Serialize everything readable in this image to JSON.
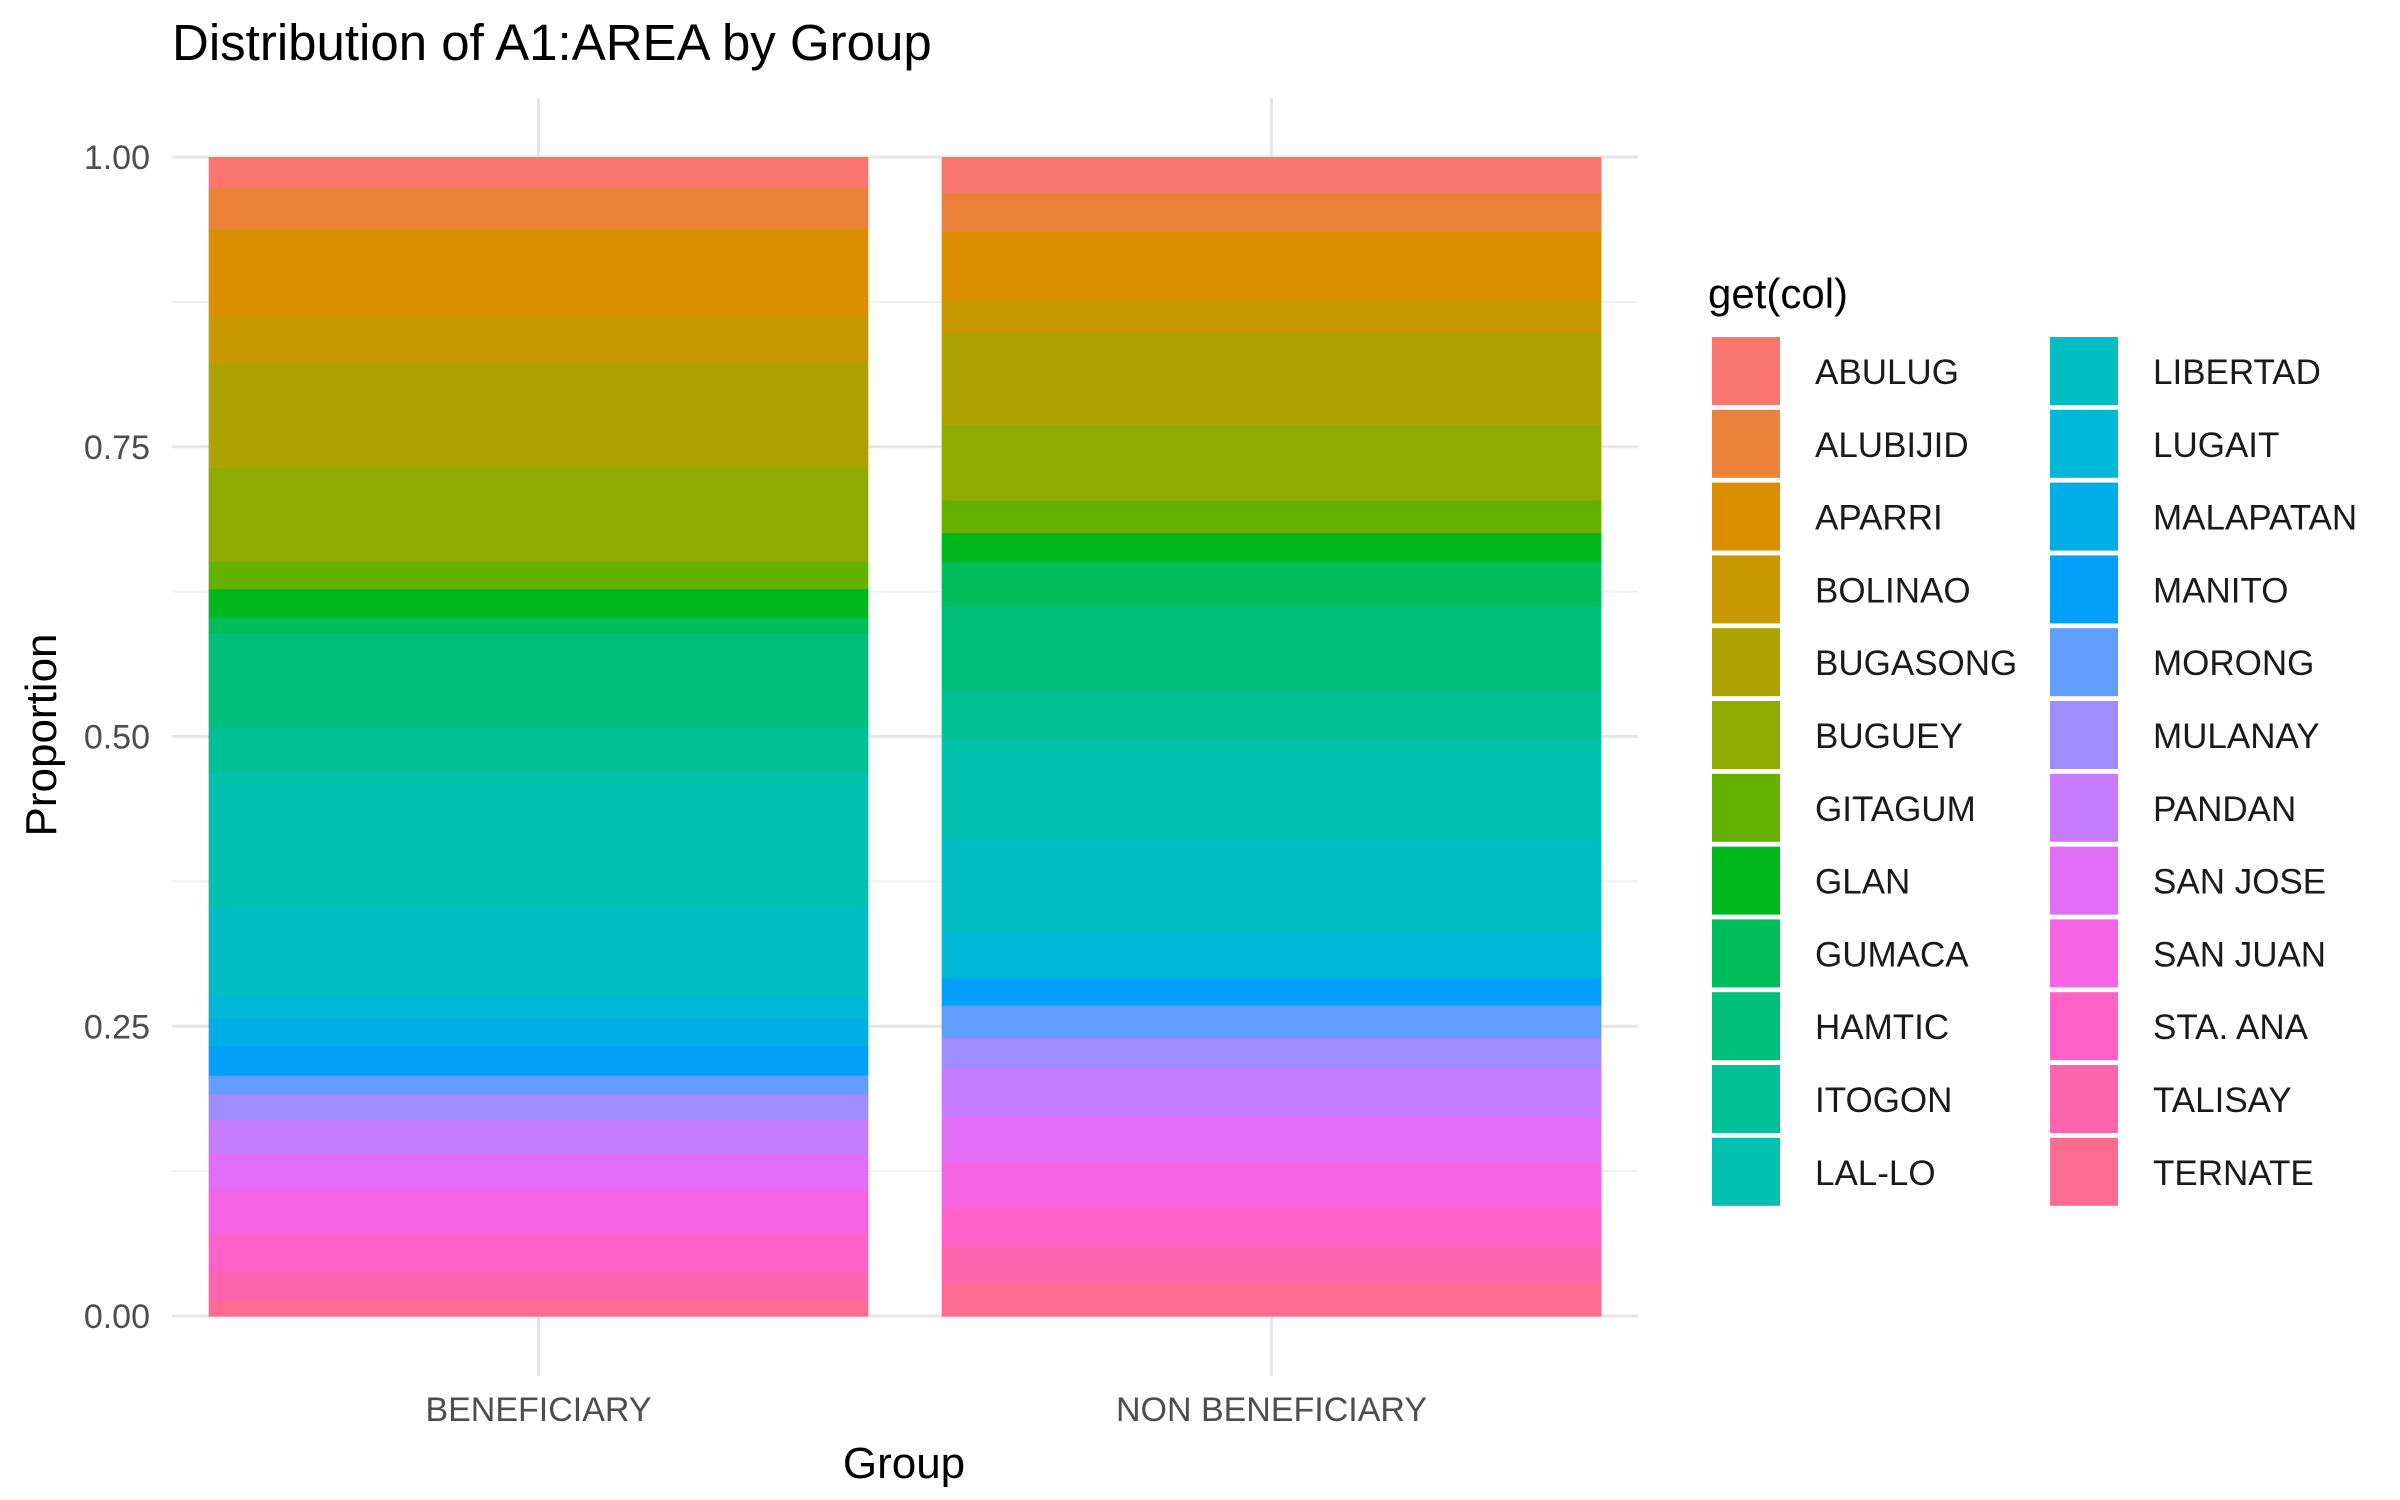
{
  "chart_data": {
    "type": "bar",
    "stacked": true,
    "normalized": true,
    "title": "Distribution of A1:AREA by Group",
    "xlabel": "Group",
    "ylabel": "Proportion",
    "ylim": [
      0,
      1
    ],
    "y_ticks": [
      "0.00",
      "0.25",
      "0.50",
      "0.75",
      "1.00"
    ],
    "grid": true,
    "legend_position": "right",
    "legend_title": "get(col)",
    "categories": [
      "BENEFICIARY",
      "NON BENEFICIARY"
    ],
    "series": [
      {
        "name": "ABULUG",
        "color": "#F8766D",
        "values": [
          0.027,
          0.032
        ]
      },
      {
        "name": "ALUBIJID",
        "color": "#EC8239",
        "values": [
          0.036,
          0.035
        ]
      },
      {
        "name": "APARRI",
        "color": "#DB8E00",
        "values": [
          0.076,
          0.06
        ]
      },
      {
        "name": "BOLINAO",
        "color": "#C79800",
        "values": [
          0.042,
          0.03
        ]
      },
      {
        "name": "BUGASONG",
        "color": "#AEA200",
        "values": [
          0.092,
          0.083
        ]
      },
      {
        "name": "BUGUEY",
        "color": "#8FAA00",
        "values": [
          0.083,
          0.068
        ]
      },
      {
        "name": "GITAGUM",
        "color": "#64B200",
        "values": [
          0.024,
          0.029
        ]
      },
      {
        "name": "GLAN",
        "color": "#00B81B",
        "values": [
          0.025,
          0.026
        ]
      },
      {
        "name": "GUMACA",
        "color": "#00BD5C",
        "values": [
          0.014,
          0.04
        ]
      },
      {
        "name": "HAMTIC",
        "color": "#00BF7D",
        "values": [
          0.083,
          0.077
        ]
      },
      {
        "name": "ITOGON",
        "color": "#00C097",
        "values": [
          0.04,
          0.044
        ]
      },
      {
        "name": "LAL-LO",
        "color": "#00C0AF",
        "values": [
          0.117,
          0.088
        ]
      },
      {
        "name": "LIBERTAD",
        "color": "#00BDC4",
        "values": [
          0.079,
          0.084
        ]
      },
      {
        "name": "LUGAIT",
        "color": "#00B7D8",
        "values": [
          0.02,
          0.04
        ]
      },
      {
        "name": "MALAPATAN",
        "color": "#00ADE7",
        "values": [
          0.024,
          0.0
        ]
      },
      {
        "name": "MANITO",
        "color": "#00A0FA",
        "values": [
          0.026,
          0.025
        ]
      },
      {
        "name": "MORONG",
        "color": "#619CFF",
        "values": [
          0.016,
          0.029
        ]
      },
      {
        "name": "MULANAY",
        "color": "#9F8CFF",
        "values": [
          0.023,
          0.027
        ]
      },
      {
        "name": "PANDAN",
        "color": "#C77CFF",
        "values": [
          0.03,
          0.044
        ]
      },
      {
        "name": "SAN JOSE",
        "color": "#E36EF6",
        "values": [
          0.032,
          0.04
        ]
      },
      {
        "name": "SAN JUAN",
        "color": "#F564E3",
        "values": [
          0.038,
          0.041
        ]
      },
      {
        "name": "STA. ANA",
        "color": "#FF61C9",
        "values": [
          0.034,
          0.035
        ]
      },
      {
        "name": "TALISAY",
        "color": "#FF64AF",
        "values": [
          0.025,
          0.034
        ]
      },
      {
        "name": "TERNATE",
        "color": "#FF6C91",
        "values": [
          0.014,
          0.029
        ]
      }
    ]
  }
}
